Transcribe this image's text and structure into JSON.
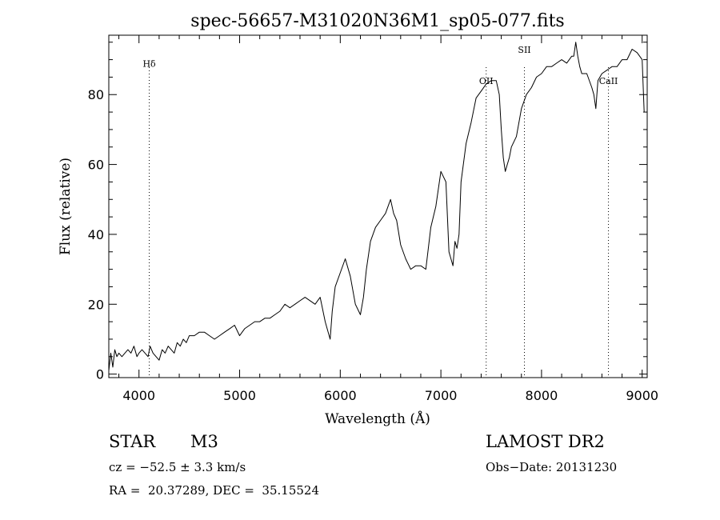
{
  "chart_data": {
    "type": "line",
    "title": "spec-56657-M31020N36M1_sp05-077.fits",
    "xlabel": "Wavelength (Å)",
    "ylabel": "Flux (relative)",
    "xlim": [
      3700,
      9050
    ],
    "ylim": [
      -1,
      97
    ],
    "xticks": [
      4000,
      5000,
      6000,
      7000,
      8000,
      9000
    ],
    "yticks": [
      0,
      20,
      40,
      60,
      80
    ],
    "grid": false,
    "line_color": "#000000",
    "series": [
      {
        "x": [
          3700,
          3720,
          3740,
          3760,
          3780,
          3800,
          3830,
          3860,
          3890,
          3920,
          3950,
          3980,
          4000,
          4030,
          4060,
          4090,
          4110,
          4140,
          4170,
          4200,
          4230,
          4260,
          4290,
          4320,
          4350,
          4380,
          4410,
          4440,
          4470,
          4500,
          4550,
          4600,
          4650,
          4700,
          4750,
          4800,
          4850,
          4900,
          4950,
          5000,
          5050,
          5100,
          5150,
          5200,
          5250,
          5300,
          5350,
          5400,
          5450,
          5500,
          5550,
          5600,
          5650,
          5700,
          5750,
          5800,
          5850,
          5880,
          5900,
          5920,
          5950,
          6000,
          6050,
          6100,
          6150,
          6200,
          6230,
          6260,
          6300,
          6350,
          6400,
          6450,
          6500,
          6530,
          6560,
          6600,
          6650,
          6700,
          6750,
          6800,
          6850,
          6900,
          6950,
          7000,
          7050,
          7080,
          7100,
          7120,
          7140,
          7160,
          7180,
          7200,
          7250,
          7300,
          7350,
          7400,
          7450,
          7500,
          7550,
          7580,
          7600,
          7620,
          7640,
          7660,
          7680,
          7700,
          7750,
          7800,
          7850,
          7900,
          7950,
          8000,
          8050,
          8100,
          8150,
          8200,
          8250,
          8300,
          8320,
          8340,
          8360,
          8380,
          8400,
          8450,
          8500,
          8520,
          8540,
          8560,
          8600,
          8650,
          8700,
          8750,
          8800,
          8850,
          8900,
          8950,
          9000,
          9020
        ],
        "values": [
          1,
          6,
          2,
          7,
          5,
          6,
          5,
          6,
          7,
          6,
          8,
          5,
          6,
          7,
          6,
          5,
          8,
          6,
          5,
          4,
          7,
          6,
          8,
          7,
          6,
          9,
          8,
          10,
          9,
          11,
          11,
          12,
          12,
          11,
          10,
          11,
          12,
          13,
          14,
          11,
          13,
          14,
          15,
          15,
          16,
          16,
          17,
          18,
          20,
          19,
          20,
          21,
          22,
          21,
          20,
          22,
          15,
          12,
          10,
          18,
          25,
          29,
          33,
          28,
          20,
          17,
          22,
          30,
          38,
          42,
          44,
          46,
          50,
          46,
          44,
          37,
          33,
          30,
          31,
          31,
          30,
          42,
          48,
          58,
          55,
          35,
          33,
          31,
          38,
          36,
          40,
          55,
          66,
          72,
          79,
          81,
          83,
          84,
          84,
          80,
          70,
          62,
          58,
          60,
          62,
          65,
          68,
          76,
          80,
          82,
          85,
          86,
          88,
          88,
          89,
          90,
          89,
          91,
          91,
          95,
          91,
          88,
          86,
          86,
          82,
          80,
          76,
          84,
          86,
          87,
          88,
          88,
          90,
          90,
          93,
          92,
          90,
          75
        ]
      }
    ],
    "annotations": [
      {
        "label": "Hδ",
        "x": 4102,
        "y": 88
      },
      {
        "label": "OII",
        "x": 7450,
        "y": 83
      },
      {
        "label": "SII",
        "x": 7830,
        "y": 92
      },
      {
        "label": "CaII",
        "x": 8665,
        "y": 83
      }
    ]
  },
  "info": {
    "class": "STAR",
    "subclass": "M3",
    "survey": "LAMOST DR2",
    "cz": "cz = −52.5 ± 3.3 km/s",
    "obs_date": "Obs−Date: 20131230",
    "coords": "RA =  20.37289, DEC =  35.15524"
  }
}
